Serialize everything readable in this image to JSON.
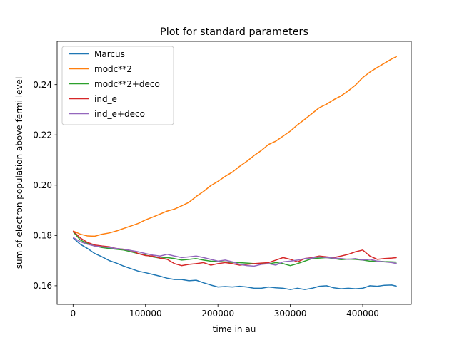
{
  "chart_data": {
    "type": "line",
    "title": "Plot for standard parameters",
    "xlabel": "time in au",
    "ylabel": "sum of electron population above fermi level",
    "xlim": [
      -22000,
      467000
    ],
    "ylim": [
      0.1526,
      0.2572
    ],
    "xticks": [
      0,
      100000,
      200000,
      300000,
      400000
    ],
    "xtick_labels": [
      "0",
      "100000",
      "200000",
      "300000",
      "400000"
    ],
    "yticks": [
      0.16,
      0.18,
      0.2,
      0.22,
      0.24
    ],
    "ytick_labels": [
      "0.16",
      "0.18",
      "0.20",
      "0.22",
      "0.24"
    ],
    "grid": false,
    "legend_position": "top-left",
    "series": [
      {
        "name": "Marcus",
        "color": "#1f77b4",
        "x": [
          0,
          10000,
          20000,
          30000,
          40000,
          50000,
          60000,
          70000,
          80000,
          90000,
          100000,
          110000,
          120000,
          130000,
          140000,
          150000,
          160000,
          170000,
          180000,
          190000,
          200000,
          210000,
          220000,
          230000,
          240000,
          250000,
          260000,
          270000,
          280000,
          290000,
          300000,
          310000,
          320000,
          330000,
          340000,
          350000,
          360000,
          370000,
          380000,
          390000,
          400000,
          410000,
          420000,
          430000,
          440000,
          447000
        ],
        "y": [
          0.179,
          0.1765,
          0.1748,
          0.1728,
          0.1715,
          0.17,
          0.169,
          0.1678,
          0.1668,
          0.1658,
          0.1652,
          0.1645,
          0.1638,
          0.163,
          0.1625,
          0.1625,
          0.162,
          0.1622,
          0.1612,
          0.1603,
          0.1595,
          0.1597,
          0.1595,
          0.1598,
          0.1595,
          0.159,
          0.159,
          0.1595,
          0.1592,
          0.159,
          0.1585,
          0.159,
          0.1585,
          0.159,
          0.1598,
          0.16,
          0.1592,
          0.1588,
          0.159,
          0.1588,
          0.159,
          0.16,
          0.1598,
          0.1602,
          0.1603,
          0.1598
        ]
      },
      {
        "name": "modc**2",
        "color": "#ff7f0e",
        "x": [
          0,
          10000,
          20000,
          30000,
          40000,
          50000,
          60000,
          70000,
          80000,
          90000,
          100000,
          110000,
          120000,
          130000,
          140000,
          150000,
          160000,
          170000,
          180000,
          190000,
          200000,
          210000,
          220000,
          230000,
          240000,
          250000,
          260000,
          270000,
          280000,
          290000,
          300000,
          310000,
          320000,
          330000,
          340000,
          350000,
          360000,
          370000,
          380000,
          390000,
          400000,
          410000,
          420000,
          430000,
          440000,
          447000
        ],
        "y": [
          0.1818,
          0.1805,
          0.1798,
          0.1797,
          0.1805,
          0.181,
          0.1818,
          0.1828,
          0.1838,
          0.1848,
          0.1862,
          0.1873,
          0.1885,
          0.1897,
          0.1905,
          0.1918,
          0.1932,
          0.1955,
          0.1975,
          0.1998,
          0.2015,
          0.2035,
          0.2052,
          0.2075,
          0.2095,
          0.2118,
          0.2138,
          0.2162,
          0.2175,
          0.2195,
          0.2215,
          0.224,
          0.2262,
          0.2285,
          0.2308,
          0.2322,
          0.234,
          0.2355,
          0.2375,
          0.2398,
          0.2428,
          0.245,
          0.2468,
          0.2485,
          0.2502,
          0.2512
        ]
      },
      {
        "name": "modc**2+deco",
        "color": "#2ca02c",
        "x": [
          0,
          10000,
          20000,
          30000,
          40000,
          50000,
          60000,
          70000,
          80000,
          90000,
          100000,
          110000,
          120000,
          130000,
          140000,
          150000,
          160000,
          170000,
          180000,
          190000,
          200000,
          210000,
          220000,
          230000,
          240000,
          250000,
          260000,
          270000,
          280000,
          290000,
          300000,
          310000,
          320000,
          330000,
          340000,
          350000,
          360000,
          370000,
          380000,
          390000,
          400000,
          410000,
          420000,
          430000,
          440000,
          447000
        ],
        "y": [
          0.1815,
          0.1782,
          0.1768,
          0.1758,
          0.1752,
          0.1748,
          0.1745,
          0.1742,
          0.1735,
          0.1728,
          0.1722,
          0.1715,
          0.171,
          0.1712,
          0.1708,
          0.1702,
          0.1705,
          0.1708,
          0.1702,
          0.1698,
          0.1696,
          0.1695,
          0.1693,
          0.1692,
          0.169,
          0.1688,
          0.1688,
          0.1687,
          0.1692,
          0.1688,
          0.168,
          0.1688,
          0.1698,
          0.1708,
          0.171,
          0.1712,
          0.1708,
          0.1704,
          0.1706,
          0.1705,
          0.1702,
          0.1698,
          0.1698,
          0.1696,
          0.1695,
          0.1694
        ]
      },
      {
        "name": "ind_e",
        "color": "#d62728",
        "x": [
          0,
          10000,
          20000,
          30000,
          40000,
          50000,
          60000,
          70000,
          80000,
          90000,
          100000,
          110000,
          120000,
          130000,
          140000,
          150000,
          160000,
          170000,
          180000,
          190000,
          200000,
          210000,
          220000,
          230000,
          240000,
          250000,
          260000,
          270000,
          280000,
          290000,
          300000,
          310000,
          320000,
          330000,
          340000,
          350000,
          360000,
          370000,
          380000,
          390000,
          400000,
          410000,
          420000,
          430000,
          440000,
          447000
        ],
        "y": [
          0.1818,
          0.179,
          0.1772,
          0.1762,
          0.1758,
          0.1755,
          0.1748,
          0.1745,
          0.174,
          0.1728,
          0.172,
          0.1718,
          0.171,
          0.1705,
          0.1688,
          0.168,
          0.1685,
          0.1688,
          0.1692,
          0.1682,
          0.1688,
          0.1692,
          0.1688,
          0.1682,
          0.1685,
          0.1688,
          0.169,
          0.1692,
          0.1702,
          0.1712,
          0.1705,
          0.1695,
          0.1708,
          0.1712,
          0.1718,
          0.1715,
          0.1712,
          0.1718,
          0.1725,
          0.1735,
          0.1742,
          0.1718,
          0.1705,
          0.1708,
          0.171,
          0.1712
        ]
      },
      {
        "name": "ind_e+deco",
        "color": "#9467bd",
        "x": [
          0,
          10000,
          20000,
          30000,
          40000,
          50000,
          60000,
          70000,
          80000,
          90000,
          100000,
          110000,
          120000,
          130000,
          140000,
          150000,
          160000,
          170000,
          180000,
          190000,
          200000,
          210000,
          220000,
          230000,
          240000,
          250000,
          260000,
          270000,
          280000,
          290000,
          300000,
          310000,
          320000,
          330000,
          340000,
          350000,
          360000,
          370000,
          380000,
          390000,
          400000,
          410000,
          420000,
          430000,
          440000,
          447000
        ],
        "y": [
          0.1792,
          0.1775,
          0.1765,
          0.1758,
          0.1755,
          0.1752,
          0.1748,
          0.1745,
          0.174,
          0.1735,
          0.1728,
          0.1722,
          0.1718,
          0.1725,
          0.1718,
          0.1712,
          0.1715,
          0.1718,
          0.1712,
          0.1705,
          0.1698,
          0.1702,
          0.1695,
          0.1685,
          0.168,
          0.1678,
          0.1685,
          0.1688,
          0.1682,
          0.1695,
          0.1698,
          0.1702,
          0.1708,
          0.171,
          0.1715,
          0.1712,
          0.171,
          0.1708,
          0.1705,
          0.1708,
          0.1702,
          0.1705,
          0.1698,
          0.1695,
          0.1692,
          0.1688
        ]
      }
    ]
  }
}
